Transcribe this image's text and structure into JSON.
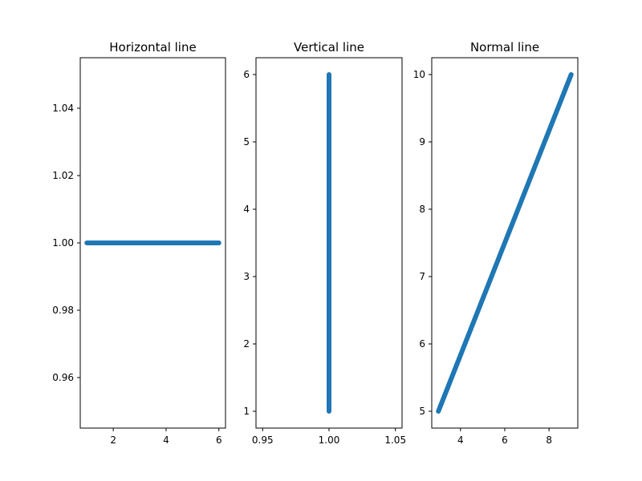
{
  "figure": {
    "background": "#ffffff"
  },
  "chart_data": [
    {
      "type": "line",
      "title": "Horizontal line",
      "series": [
        {
          "x": [
            1,
            6
          ],
          "y": [
            1,
            1
          ],
          "color": "#1f77b4"
        }
      ],
      "xlim": [
        0.75,
        6.25
      ],
      "ylim": [
        0.945,
        1.055
      ],
      "xticks": [
        2,
        4,
        6
      ],
      "xtick_labels": [
        "2",
        "4",
        "6"
      ],
      "yticks": [
        0.96,
        0.98,
        1.0,
        1.02,
        1.04
      ],
      "ytick_labels": [
        "0.96",
        "0.98",
        "1.00",
        "1.02",
        "1.04"
      ],
      "grid": false
    },
    {
      "type": "line",
      "title": "Vertical line",
      "series": [
        {
          "x": [
            1,
            1
          ],
          "y": [
            1,
            6
          ],
          "color": "#1f77b4"
        }
      ],
      "xlim": [
        0.945,
        1.055
      ],
      "ylim": [
        0.75,
        6.25
      ],
      "xticks": [
        0.95,
        1.0,
        1.05
      ],
      "xtick_labels": [
        "0.95",
        "1.00",
        "1.05"
      ],
      "yticks": [
        1,
        2,
        3,
        4,
        5,
        6
      ],
      "ytick_labels": [
        "1",
        "2",
        "3",
        "4",
        "5",
        "6"
      ],
      "grid": false
    },
    {
      "type": "line",
      "title": "Normal line",
      "series": [
        {
          "x": [
            3,
            9
          ],
          "y": [
            5,
            10
          ],
          "color": "#1f77b4"
        }
      ],
      "xlim": [
        2.7,
        9.3
      ],
      "ylim": [
        4.75,
        10.25
      ],
      "xticks": [
        4,
        6,
        8
      ],
      "xtick_labels": [
        "4",
        "6",
        "8"
      ],
      "yticks": [
        5,
        6,
        7,
        8,
        9,
        10
      ],
      "ytick_labels": [
        "5",
        "6",
        "7",
        "8",
        "9",
        "10"
      ],
      "grid": false
    }
  ]
}
